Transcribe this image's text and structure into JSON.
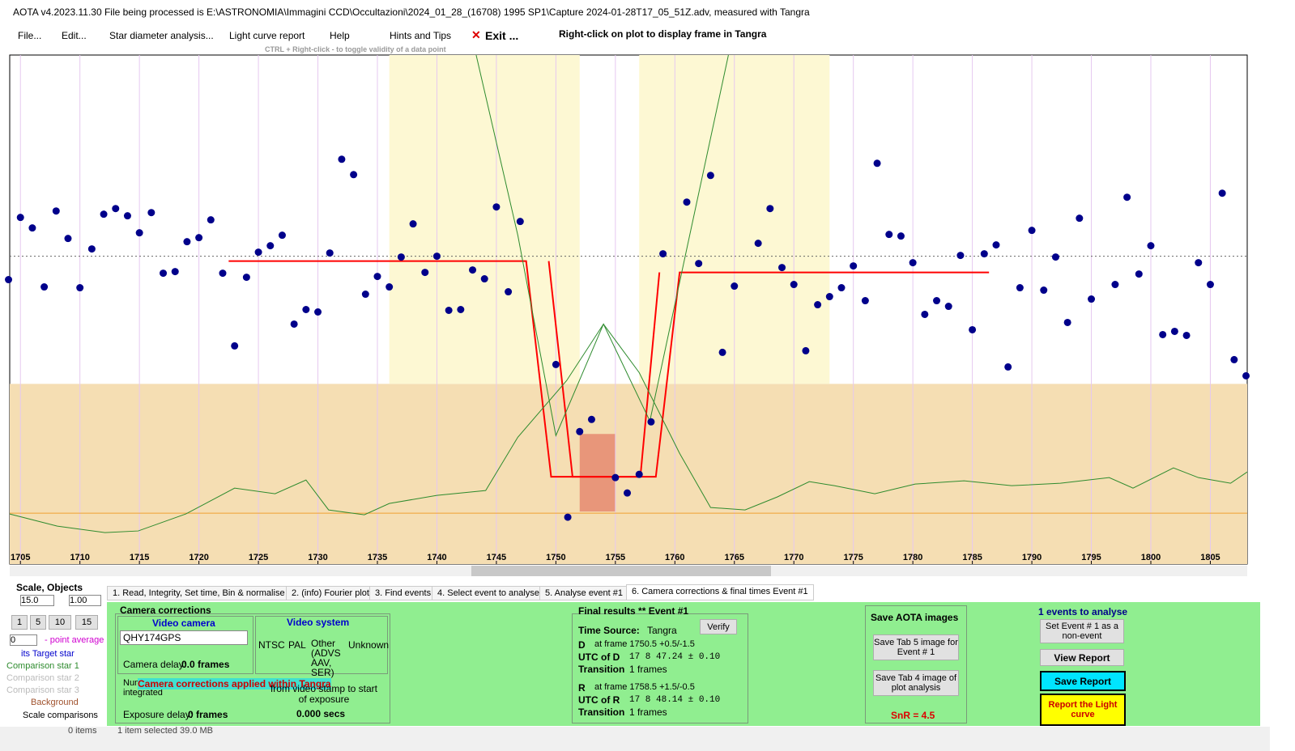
{
  "title_bar": "AOTA v4.2023.11.30    File being processed is E:\\ASTRONOMIA\\Immagini CCD\\Occultazioni\\2024_01_28_(16708) 1995 SP1\\Capture 2024-01-28T17_05_51Z.adv, measured with Tangra",
  "menu": {
    "file": "File...",
    "edit": "Edit...",
    "star_diameter": "Star diameter analysis...",
    "report": "Light curve report",
    "help": "Help",
    "hints": "Hints and Tips",
    "exit": "Exit ...",
    "right_click_hint": "Right-click on plot to display frame in Tangra",
    "ctrl_hint": "CTRL + Right-click  -  to toggle validity of a data point"
  },
  "chart_data": {
    "type": "scatter",
    "color": "#00008b",
    "grid": true,
    "x": [
      1704,
      1705,
      1706,
      1707,
      1708,
      1709,
      1710,
      1711,
      1712,
      1713,
      1714,
      1715,
      1716,
      1717,
      1718,
      1719,
      1720,
      1721,
      1722,
      1723,
      1724,
      1725,
      1726,
      1727,
      1728,
      1729,
      1730,
      1731,
      1732,
      1733,
      1734,
      1735,
      1736,
      1737,
      1738,
      1739,
      1740,
      1741,
      1742,
      1743,
      1744,
      1745,
      1746,
      1747,
      1750,
      1751,
      1752,
      1753,
      1755,
      1756,
      1757,
      1758,
      1759,
      1761,
      1762,
      1763,
      1764,
      1765,
      1767,
      1768,
      1769,
      1770,
      1771,
      1772,
      1773,
      1774,
      1775,
      1776,
      1777,
      1778,
      1779,
      1780,
      1781,
      1782,
      1783,
      1784,
      1785,
      1786,
      1787,
      1788,
      1789,
      1790,
      1791,
      1792,
      1793,
      1794,
      1795,
      1797,
      1798,
      1799,
      1800,
      1801,
      1802,
      1803,
      1804,
      1805,
      1806,
      1807,
      1808
    ],
    "values": [
      352,
      429,
      416,
      343,
      437,
      403,
      342,
      390,
      433,
      440,
      431,
      410,
      435,
      360,
      362,
      399,
      404,
      426,
      360,
      270,
      355,
      386,
      394,
      407,
      297,
      315,
      312,
      385,
      501,
      482,
      334,
      356,
      343,
      380,
      421,
      361,
      381,
      314,
      315,
      364,
      353,
      442,
      337,
      424,
      247,
      58,
      164,
      179,
      107,
      88,
      111,
      176,
      384,
      448,
      372,
      481,
      262,
      344,
      397,
      440,
      367,
      346,
      264,
      321,
      331,
      342,
      369,
      326,
      496,
      408,
      406,
      373,
      309,
      326,
      319,
      382,
      290,
      384,
      395,
      244,
      342,
      413,
      339,
      380,
      299,
      428,
      328,
      346,
      454,
      359,
      394,
      284,
      288,
      283,
      373,
      346,
      459,
      253,
      233
    ],
    "xlim": [
      1704.1,
      1808.1
    ],
    "ylim": [
      0,
      630
    ],
    "xticks": [
      1705,
      1710,
      1715,
      1720,
      1725,
      1730,
      1735,
      1740,
      1745,
      1750,
      1755,
      1760,
      1765,
      1770,
      1775,
      1780,
      1785,
      1790,
      1795,
      1800,
      1805
    ],
    "shaded_x": [
      [
        1736,
        1752
      ],
      [
        1757,
        1773
      ]
    ],
    "shade_color": "#fdf8d3",
    "lower_band": [
      0,
      223
    ],
    "lower_band_color": "#f5deb3",
    "highlight": {
      "x": [
        1752,
        1755
      ],
      "y": [
        65,
        161
      ],
      "color": "#e8967a"
    },
    "reference_lines": [
      {
        "value": 381,
        "color": "#666666"
      },
      {
        "value": 63,
        "color": "#f0a030"
      }
    ],
    "lines": [
      {
        "color": "#ff0000",
        "x": [
          1722.5,
          1747.5,
          1749.6,
          1758.4,
          1760.4,
          1786.4
        ],
        "values": [
          375,
          375,
          108,
          108,
          361,
          361
        ]
      },
      {
        "color": "#ff0000",
        "x": [
          1749.4,
          1751.4,
          1757.1,
          1758.7
        ],
        "values": [
          375,
          108,
          108,
          361
        ]
      },
      {
        "color": "#2e8b2e",
        "x": [
          1743.3,
          1746.8,
          1750.0,
          1754.0,
          1757.9,
          1761.1,
          1764.5
        ],
        "values": [
          630,
          407,
          159,
          297,
          177,
          397,
          630
        ]
      },
      {
        "color": "#2e8b2e",
        "x": [
          1704.1,
          1708.1,
          1712.1,
          1714.9,
          1718.9,
          1723.0,
          1726.4,
          1729.0,
          1730.9,
          1733.9,
          1736.0,
          1740.0,
          1744.1,
          1746.8,
          1750.9,
          1754.0,
          1757.0,
          1760.4,
          1763.0,
          1765.9,
          1768.6,
          1771.3,
          1773.4,
          1776.8,
          1780.2,
          1784.3,
          1788.3,
          1792.4,
          1796.5,
          1798.5,
          1801.9,
          1804.0,
          1806.7,
          1808.1
        ],
        "values": [
          62,
          47,
          39,
          41,
          62,
          94,
          87,
          104,
          67,
          61,
          75,
          85,
          91,
          157,
          227,
          297,
          237,
          137,
          70,
          67,
          83,
          102,
          97,
          87,
          99,
          103,
          97,
          100,
          107,
          94,
          119,
          107,
          100,
          114
        ]
      }
    ]
  },
  "left": {
    "scale": "Scale,  Objects",
    "scale_value": "15.0",
    "objects_value": "1.00",
    "buttons": [
      "1",
      "5",
      "10",
      "15"
    ],
    "avg_value": "0",
    "avg_label": "- point average",
    "target": "its  Target star",
    "comp1": "Comparison star 1",
    "comp2": "Comparison star 2",
    "comp3": "Comparison star 3",
    "background": "Background",
    "scale_comparisons": "Scale comparisons"
  },
  "tabs": [
    "1.  Read, Integrity, Set time, Bin & normalise",
    "2. (info)  Fourier plot",
    "3. Find events",
    "4. Select event to analyse",
    "5. Analyse event #1",
    "6. Camera corrections & final times Event #1"
  ],
  "camera": {
    "title": "Camera corrections",
    "video_camera": "Video camera",
    "camera_name": "QHY174GPS",
    "camera_delay": "Camera delay:",
    "camera_delay_value": "0.0 frames",
    "video_system": "Video system",
    "ntsc": "NTSC",
    "pal": "PAL",
    "other": "Other (ADVS AAV, SER)",
    "unknown": "Unknown",
    "frames_integrated": "Num... frames integrated",
    "applied": "Camera corrections applied within Tangra",
    "stamp": "from video stamp to start of exposure",
    "stamp_value": "0.000 secs",
    "exposure_delay": "Exposure delay:",
    "exposure_delay_value": "0 frames"
  },
  "results": {
    "title": "Final results  **  Event #1",
    "verify": "Verify",
    "time_source": "Time Source:",
    "time_source_value": "Tangra",
    "d": "D",
    "d_frame": "at frame 1750.5  +0.5/-1.5",
    "utc_d": "UTC of D",
    "utc_d_value": "17  8 47.24  ± 0.10",
    "transition": "Transition",
    "transition_d": "1 frames",
    "r": "R",
    "r_frame": "at frame 1758.5  +1.5/-0.5",
    "utc_r": "UTC of R",
    "utc_r_value": "17  8 48.14  ± 0.10",
    "transition_r": "1 frames"
  },
  "save": {
    "title": "Save AOTA images",
    "tab5": "Save Tab 5 image for Event # 1",
    "tab4": "Save Tab 4 image of plot analysis",
    "snr": "SnR = 4.5"
  },
  "events": {
    "count": "1  events to analyse",
    "non_event": "Set Event # 1 as a non-event",
    "view": "View Report",
    "save": "Save Report",
    "report": "Report the Light curve"
  },
  "status": {
    "items": "0 items",
    "selected": "1 item selected  39.0 MB"
  }
}
